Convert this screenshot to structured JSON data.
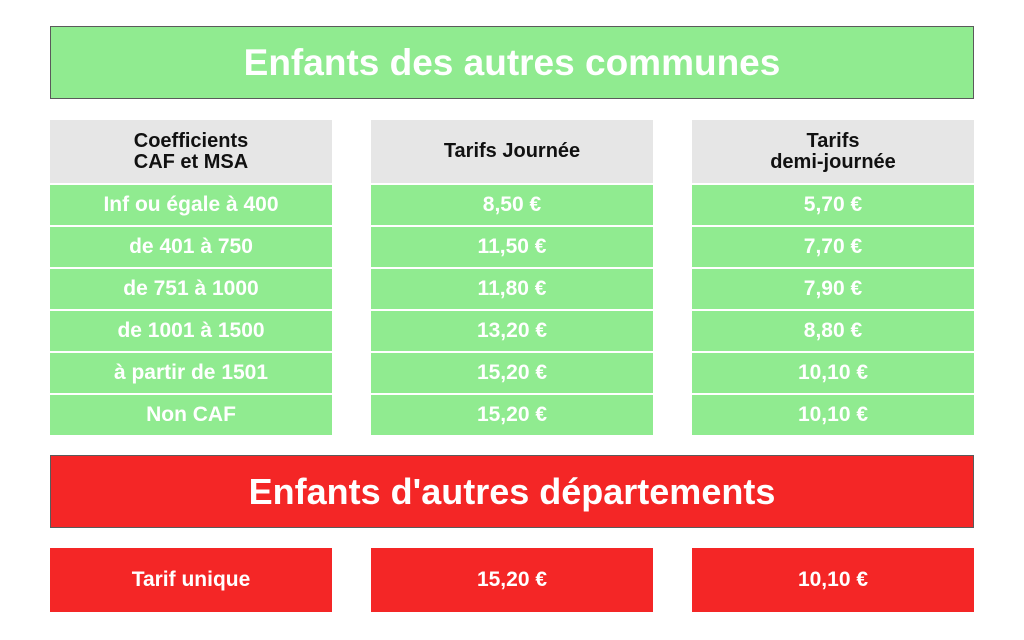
{
  "section1": {
    "title": "Enfants des autres communes",
    "color": "#90eb90",
    "headers": [
      "Coefficients\nCAF et MSA",
      "Tarifs Journée",
      "Tarifs\ndemi-journée"
    ],
    "rows": [
      {
        "coef": "Inf ou égale à 400",
        "journee": "8,50 €",
        "demi": "5,70 €"
      },
      {
        "coef": "de 401 à 750",
        "journee": "11,50 €",
        "demi": "7,70 €"
      },
      {
        "coef": "de 751 à 1000",
        "journee": "11,80 €",
        "demi": "7,90 €"
      },
      {
        "coef": "de 1001 à 1500",
        "journee": "13,20 €",
        "demi": "8,80 €"
      },
      {
        "coef": "à partir de 1501",
        "journee": "15,20 €",
        "demi": "10,10 €"
      },
      {
        "coef": "Non CAF",
        "journee": "15,20 €",
        "demi": "10,10 €"
      }
    ]
  },
  "section2": {
    "title": "Enfants d'autres départements",
    "color": "#f42626",
    "row": {
      "label": "Tarif unique",
      "journee": "15,20 €",
      "demi": "10,10 €"
    }
  }
}
